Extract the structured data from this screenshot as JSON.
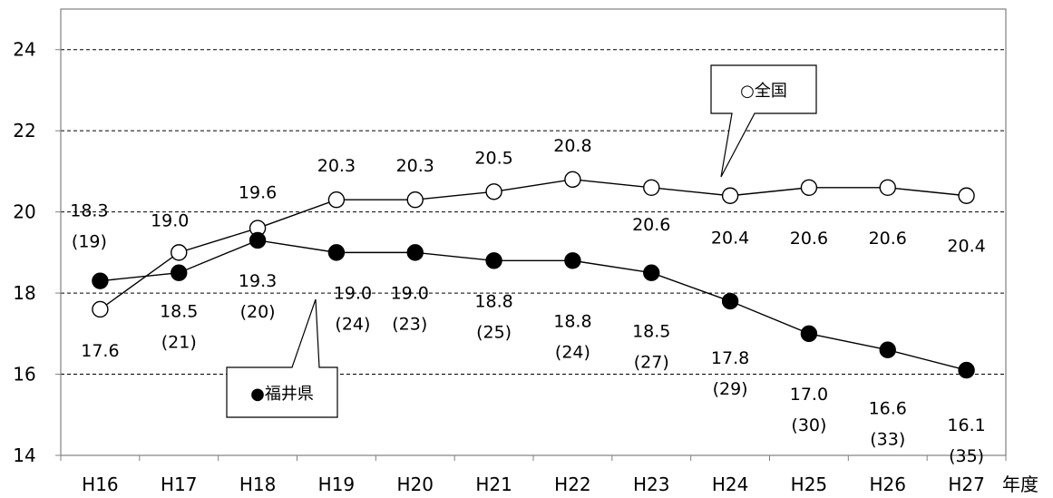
{
  "chart_data": {
    "type": "line",
    "categories": [
      "H16",
      "H17",
      "H18",
      "H19",
      "H20",
      "H21",
      "H22",
      "H23",
      "H24",
      "H25",
      "H26",
      "H27"
    ],
    "xlabel": "年度",
    "ylabel": "",
    "ylim": [
      14,
      25
    ],
    "yticks": [
      14,
      16,
      18,
      20,
      22,
      24
    ],
    "grid": "horizontal dashed",
    "series": [
      {
        "name": "○全国",
        "marker": "open-circle",
        "values": [
          17.6,
          19.0,
          19.6,
          20.3,
          20.3,
          20.5,
          20.8,
          20.6,
          20.4,
          20.6,
          20.6,
          20.4
        ],
        "labels": [
          "17.6",
          "19.0",
          "19.6",
          "20.3",
          "20.3",
          "20.5",
          "20.8",
          "20.6",
          "20.4",
          "20.6",
          "20.6",
          "20.4"
        ]
      },
      {
        "name": "●福井県",
        "marker": "filled-circle",
        "values": [
          18.3,
          18.5,
          19.3,
          19.0,
          19.0,
          18.8,
          18.8,
          18.5,
          17.8,
          17.0,
          16.6,
          16.1
        ],
        "labels": [
          "18.3",
          "18.5",
          "19.3",
          "19.0",
          "19.0",
          "18.8",
          "18.8",
          "18.5",
          "17.8",
          "17.0",
          "16.6",
          "16.1"
        ],
        "ranks": [
          "(19)",
          "(21)",
          "(20)",
          "(24)",
          "(23)",
          "(25)",
          "(24)",
          "(27)",
          "(29)",
          "(30)",
          "(33)",
          "(35)"
        ]
      }
    ],
    "callouts": [
      {
        "text": "○全国",
        "series": "○全国"
      },
      {
        "text": "●福井県",
        "series": "●福井県"
      }
    ],
    "colors": {
      "axis": "#808080",
      "grid": "#000000",
      "line": "#000000"
    }
  }
}
